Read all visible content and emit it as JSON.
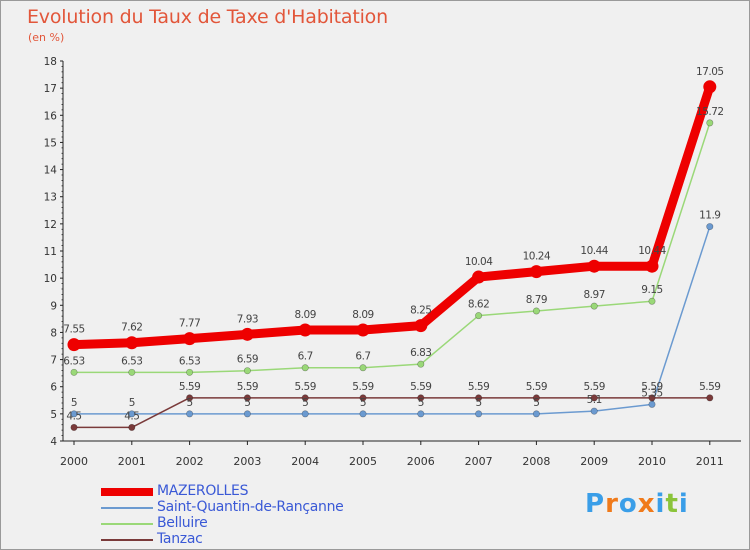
{
  "chart_data": {
    "type": "line",
    "title": "Evolution du Taux de Taxe d'Habitation",
    "subtitle": "(en %)",
    "x": [
      "2000",
      "2001",
      "2002",
      "2003",
      "2004",
      "2005",
      "2006",
      "2007",
      "2008",
      "2009",
      "2010",
      "2011"
    ],
    "ylim": [
      4,
      18
    ],
    "yticks": [
      4,
      5,
      6,
      7,
      8,
      9,
      10,
      11,
      12,
      13,
      14,
      15,
      16,
      17,
      18
    ],
    "grid": false,
    "legend_position": "bottom-left",
    "series": [
      {
        "name": "MAZEROLLES",
        "color": "#ee0000",
        "width": 9,
        "values": [
          7.55,
          7.62,
          7.77,
          7.93,
          8.09,
          8.09,
          8.25,
          10.04,
          10.24,
          10.44,
          10.44,
          17.05
        ],
        "labels": [
          "7.55",
          "7.62",
          "7.77",
          "7.93",
          "8.09",
          "8.09",
          "8.25",
          "10.04",
          "10.24",
          "10.44",
          "10.44",
          "17.05"
        ]
      },
      {
        "name": "Saint-Quantin-de-Rançanne",
        "color": "#6b9ad0",
        "width": 1.5,
        "values": [
          5,
          5,
          5,
          5,
          5,
          5,
          5,
          5,
          5,
          5.1,
          5.35,
          11.9
        ],
        "labels": [
          "5",
          "5",
          "5",
          "5",
          "5",
          "5",
          "5",
          "5",
          "5",
          "5.1",
          "5.35",
          "11.9"
        ]
      },
      {
        "name": "Belluire",
        "color": "#9ad878",
        "width": 1.5,
        "values": [
          6.53,
          6.53,
          6.53,
          6.59,
          6.7,
          6.7,
          6.83,
          8.62,
          8.79,
          8.97,
          9.15,
          15.72
        ],
        "labels": [
          "6.53",
          "6.53",
          "6.53",
          "6.59",
          "6.7",
          "6.7",
          "6.83",
          "8.62",
          "8.79",
          "8.97",
          "9.15",
          "15.72"
        ]
      },
      {
        "name": "Tanzac",
        "color": "#7a3a3a",
        "width": 1.5,
        "values": [
          4.5,
          4.5,
          5.59,
          5.59,
          5.59,
          5.59,
          5.59,
          5.59,
          5.59,
          5.59,
          5.59,
          5.59
        ],
        "labels": [
          "4.5",
          "4.5",
          "5.59",
          "5.59",
          "5.59",
          "5.59",
          "5.59",
          "5.59",
          "5.59",
          "5.59",
          "5.59",
          "5.59"
        ]
      }
    ]
  },
  "logo": {
    "text": "Proxiti",
    "letter_colors": [
      "#3a9ee8",
      "#f07a1a",
      "#3a9ee8",
      "#f07a1a",
      "#3a9ee8",
      "#8bc43a",
      "#3a9ee8"
    ]
  }
}
